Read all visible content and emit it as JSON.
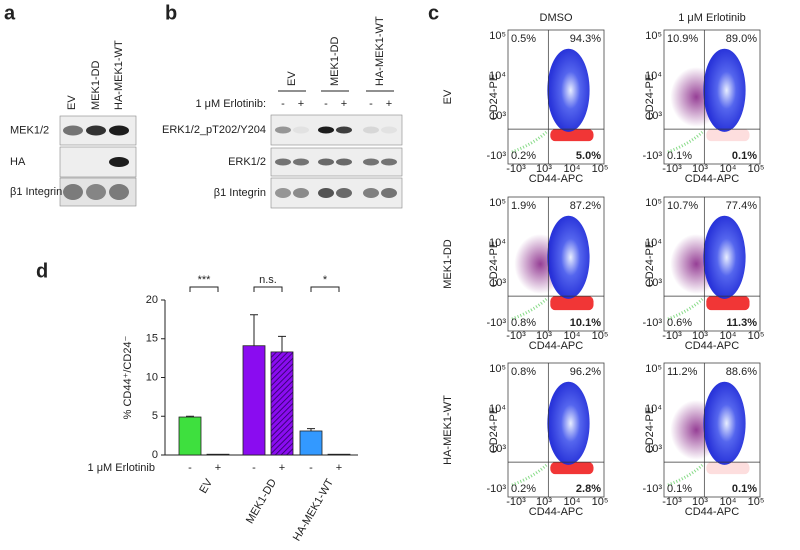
{
  "panel_a": {
    "label": "a",
    "lanes": [
      "EV",
      "MEK1-DD",
      "HA-MEK1-WT"
    ],
    "rows": [
      "MEK1/2",
      "HA",
      "β1 Integrin"
    ]
  },
  "panel_b": {
    "label": "b",
    "lanes": [
      "EV",
      "MEK1-DD",
      "HA-MEK1-WT"
    ],
    "treatment_label": "1 μM Erlotinib:",
    "conditions": [
      "-",
      "+"
    ],
    "rows": [
      "ERK1/2_pT202/Y204",
      "ERK1/2",
      "β1 Integrin"
    ]
  },
  "panel_c": {
    "label": "c",
    "columns": [
      "DMSO",
      "1 μM Erlotinib"
    ],
    "rows": [
      "EV",
      "MEK1-DD",
      "HA-MEK1-WT"
    ],
    "y_axis_label": "CD24-PE",
    "x_axis_label": "CD44-APC",
    "axis_ticks": [
      "-10³",
      "10³",
      "10⁴",
      "10⁵"
    ],
    "quadrants": [
      [
        [
          "0.5%",
          "94.3%",
          "0.2%",
          "5.0%"
        ],
        [
          "10.9%",
          "89.0%",
          "0.1%",
          "0.1%"
        ]
      ],
      [
        [
          "1.9%",
          "87.2%",
          "0.8%",
          "10.1%"
        ],
        [
          "10.7%",
          "77.4%",
          "0.6%",
          "11.3%"
        ]
      ],
      [
        [
          "0.8%",
          "96.2%",
          "0.2%",
          "2.8%"
        ],
        [
          "11.2%",
          "88.6%",
          "0.1%",
          "0.1%"
        ]
      ]
    ]
  },
  "chart_data": {
    "type": "bar",
    "label": "d",
    "y_label": "% CD44⁺/CD24⁻",
    "condition_label": "1 μM Erlotinib",
    "categories": [
      "EV",
      "MEK1-DD",
      "HA-MEK1-WT"
    ],
    "colors": [
      "#3ee03e",
      "#8a0cf0",
      "#3399ff"
    ],
    "series": [
      {
        "name": "-",
        "values": [
          4.9,
          14.1,
          3.1
        ],
        "errors": [
          0.1,
          4.0,
          0.3
        ]
      },
      {
        "name": "+",
        "values": [
          0.1,
          13.3,
          0.1
        ],
        "errors": [
          null,
          2.0,
          null
        ]
      }
    ],
    "significance": [
      "***",
      "n.s.",
      "*"
    ],
    "ylim": [
      0,
      20
    ],
    "yticks": [
      0,
      5,
      10,
      15,
      20
    ]
  }
}
